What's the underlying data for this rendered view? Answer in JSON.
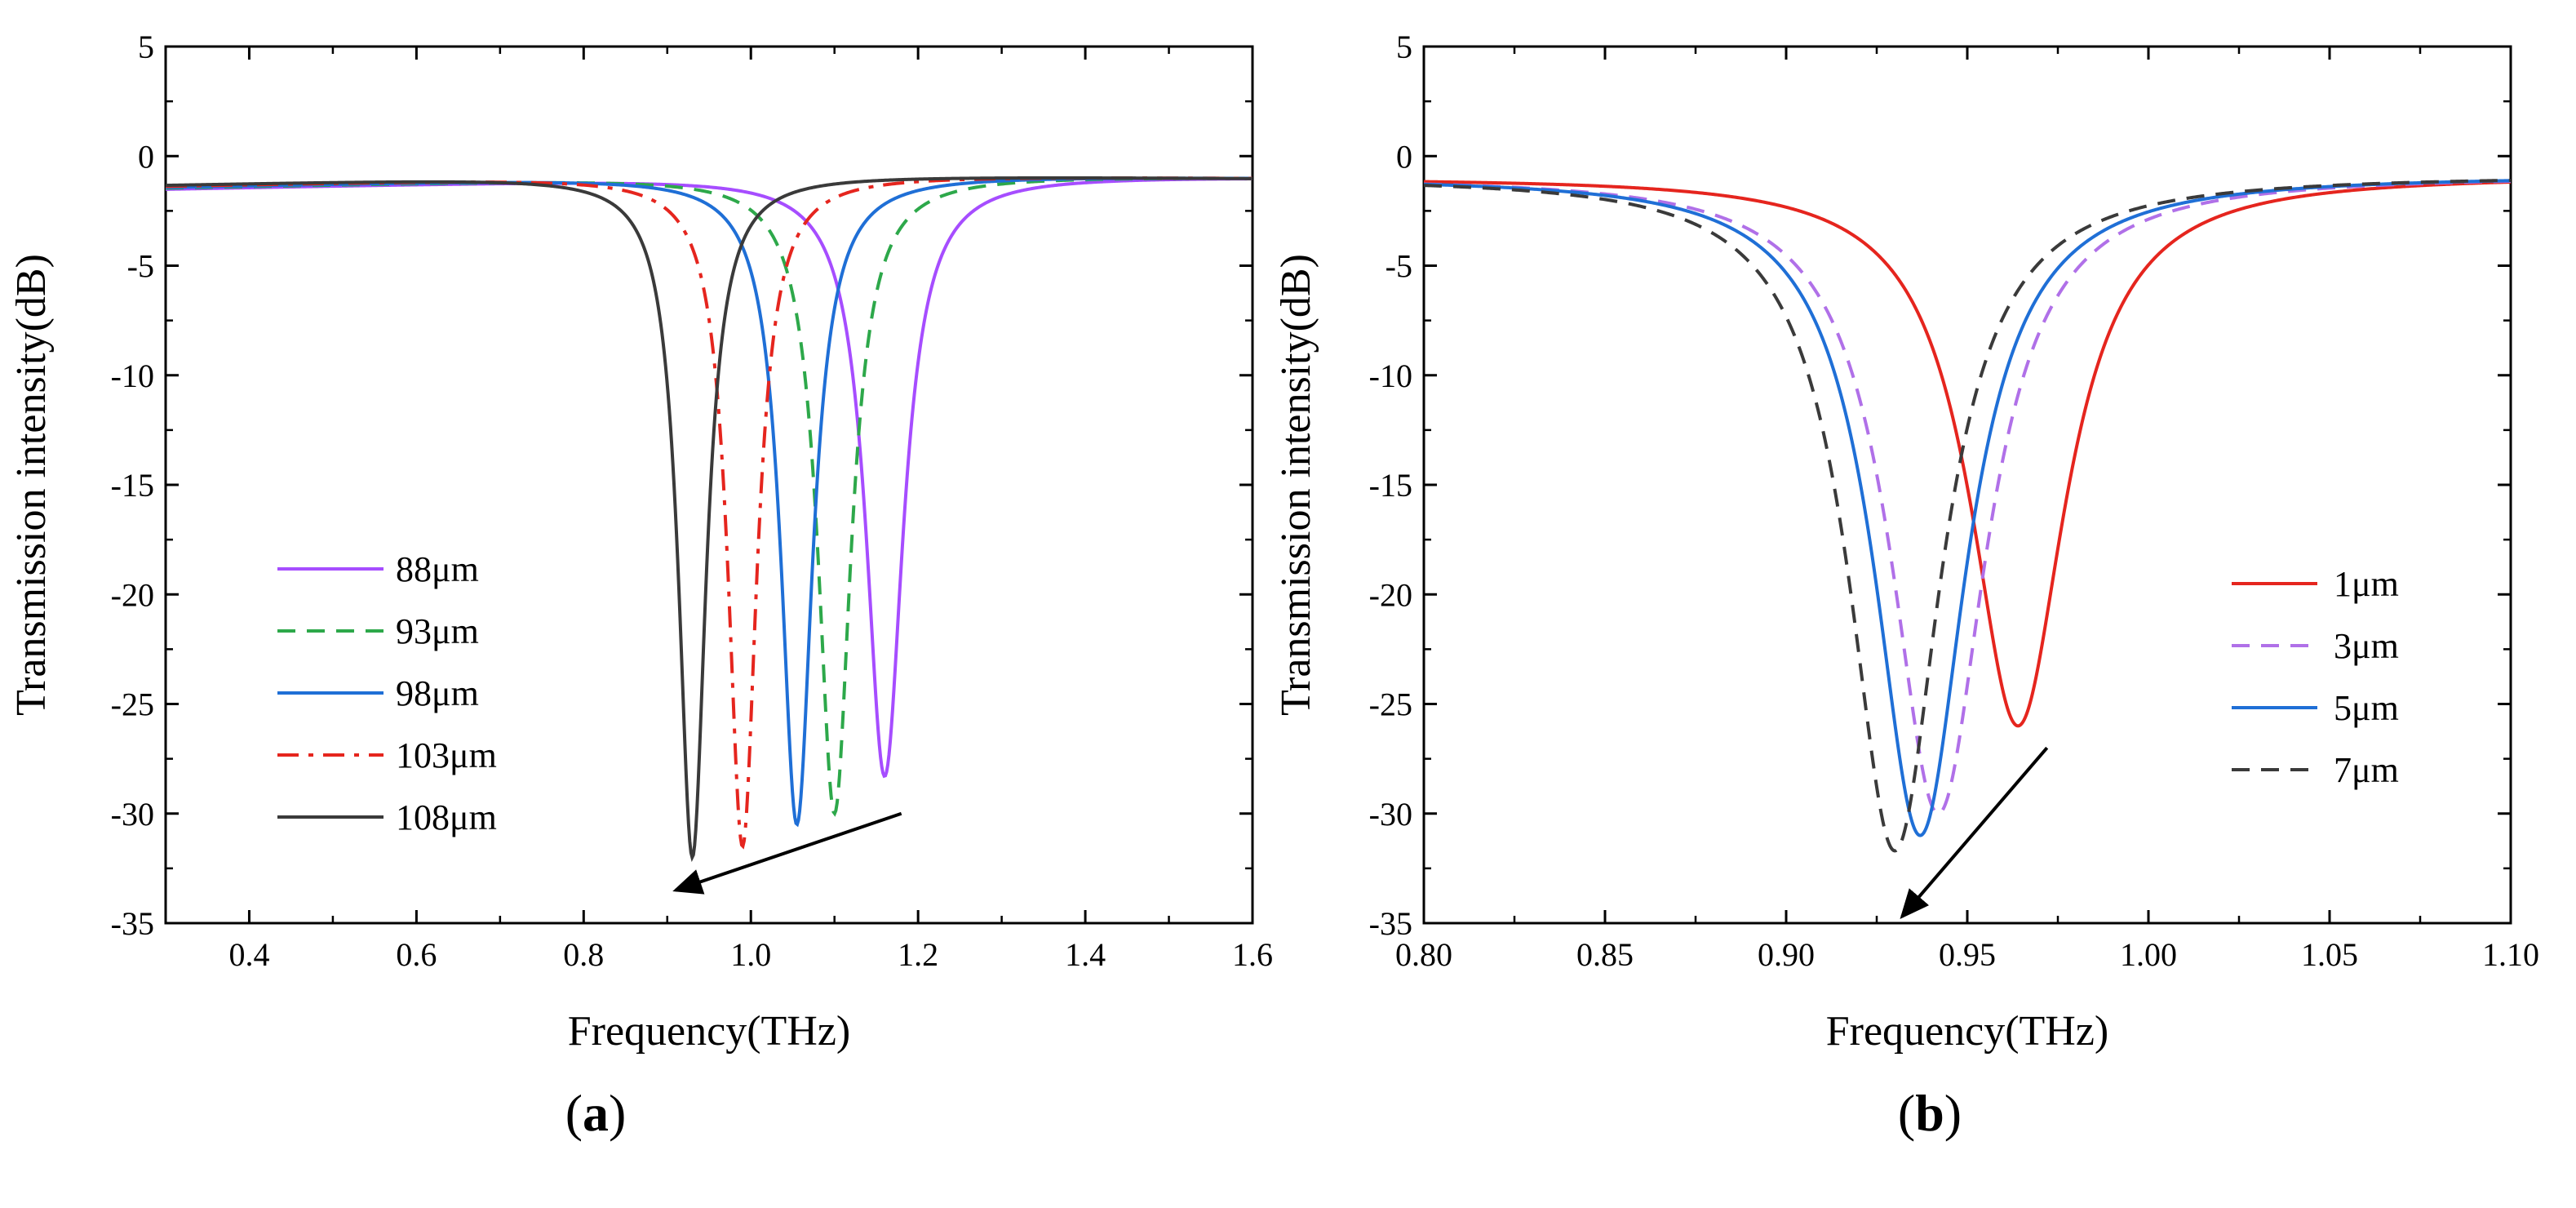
{
  "chart_data": [
    {
      "type": "line",
      "panel_label": "a",
      "xlabel": "Frequency(THz)",
      "ylabel": "Transmission intensity(dB)",
      "xlim": [
        0.3,
        1.6
      ],
      "ylim": [
        -35,
        5
      ],
      "xticks": [
        0.4,
        0.6,
        0.8,
        1.0,
        1.2,
        1.4,
        1.6
      ],
      "xtick_labels": [
        "0.4",
        "0.6",
        "0.8",
        "1.0",
        "1.2",
        "1.4",
        "1.6"
      ],
      "yticks": [
        5,
        0,
        -5,
        -10,
        -15,
        -20,
        -25,
        -30,
        -35
      ],
      "ytick_labels": [
        "5",
        "0",
        "-5",
        "-10",
        "-15",
        "-20",
        "-25",
        "-30",
        "-35"
      ],
      "legend_position": "center-left",
      "series": [
        {
          "name": "88μm",
          "color": "#A64DFF",
          "style": "solid",
          "f0": 1.16,
          "depth": -28.3,
          "gamma": 0.027
        },
        {
          "name": "93μm",
          "color": "#2DA84A",
          "style": "dash",
          "f0": 1.1,
          "depth": -30.0,
          "gamma": 0.024
        },
        {
          "name": "98μm",
          "color": "#1F6FD6",
          "style": "solid",
          "f0": 1.055,
          "depth": -30.5,
          "gamma": 0.023
        },
        {
          "name": "103μm",
          "color": "#E5251E",
          "style": "dashdot",
          "f0": 0.99,
          "depth": -31.5,
          "gamma": 0.021
        },
        {
          "name": "108μm",
          "color": "#3A3A3A",
          "style": "solid",
          "f0": 0.93,
          "depth": -32.0,
          "gamma": 0.02
        }
      ],
      "arrow": {
        "from": [
          1.18,
          -30
        ],
        "to": [
          0.91,
          -33.5
        ]
      }
    },
    {
      "type": "line",
      "panel_label": "b",
      "xlabel": "Frequency(THz)",
      "ylabel": "Transmission intensity(dB)",
      "xlim": [
        0.8,
        1.1
      ],
      "ylim": [
        -35,
        5
      ],
      "xticks": [
        0.8,
        0.85,
        0.9,
        0.95,
        1.0,
        1.05,
        1.1
      ],
      "xtick_labels": [
        "0.80",
        "0.85",
        "0.90",
        "0.95",
        "1.00",
        "1.05",
        "1.10"
      ],
      "yticks": [
        5,
        0,
        -5,
        -10,
        -15,
        -20,
        -25,
        -30,
        -35
      ],
      "ytick_labels": [
        "5",
        "0",
        "-5",
        "-10",
        "-15",
        "-20",
        "-25",
        "-30",
        "-35"
      ],
      "legend_position": "center-right",
      "series": [
        {
          "name": "1μm",
          "color": "#E5251E",
          "style": "solid",
          "f0": 0.964,
          "depth": -26.0,
          "gamma": 0.016
        },
        {
          "name": "3μm",
          "color": "#B070E8",
          "style": "dash",
          "f0": 0.942,
          "depth": -30.0,
          "gamma": 0.016
        },
        {
          "name": "5μm",
          "color": "#1F6FD6",
          "style": "solid",
          "f0": 0.937,
          "depth": -31.0,
          "gamma": 0.0155
        },
        {
          "name": "7μm",
          "color": "#3A3A3A",
          "style": "dash",
          "f0": 0.93,
          "depth": -31.7,
          "gamma": 0.0155
        }
      ],
      "arrow": {
        "from": [
          0.972,
          -27
        ],
        "to": [
          0.932,
          -34.7
        ]
      }
    }
  ],
  "panel_labels": [
    "(a)",
    "(b)"
  ]
}
